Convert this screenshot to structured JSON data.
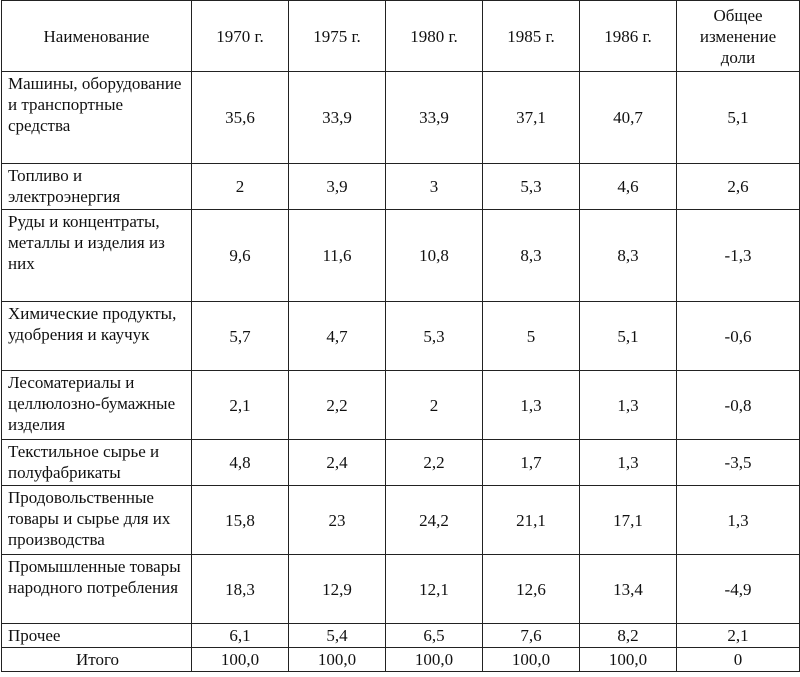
{
  "columns": [
    "Наименование",
    "1970 г.",
    "1975 г.",
    "1980 г.",
    "1985 г.",
    "1986 г.",
    "Общее изменение доли"
  ],
  "rows": [
    {
      "name": "Машины, оборудование и транспортные средства",
      "values": [
        "35,6",
        "33,9",
        "33,9",
        "37,1",
        "40,7",
        "5,1"
      ]
    },
    {
      "name": "Топливо и электроэнергия",
      "values": [
        "2",
        "3,9",
        "3",
        "5,3",
        "4,6",
        "2,6"
      ]
    },
    {
      "name": "Руды и концентраты, металлы и изделия из них",
      "values": [
        "9,6",
        "11,6",
        "10,8",
        "8,3",
        "8,3",
        "-1,3"
      ]
    },
    {
      "name": "Химические продукты, удобрения и каучук",
      "values": [
        "5,7",
        "4,7",
        "5,3",
        "5",
        "5,1",
        "-0,6"
      ]
    },
    {
      "name": "Лесоматериалы и целлюлозно-бумажные изделия",
      "values": [
        "2,1",
        "2,2",
        "2",
        "1,3",
        "1,3",
        "-0,8"
      ]
    },
    {
      "name": "Текстильное сырье и полуфабрикаты",
      "values": [
        "4,8",
        "2,4",
        "2,2",
        "1,7",
        "1,3",
        "-3,5"
      ]
    },
    {
      "name": "Продовольственные товары и сырье для их производства",
      "values": [
        "15,8",
        "23",
        "24,2",
        "21,1",
        "17,1",
        "1,3"
      ]
    },
    {
      "name": "Промышленные товары народного потребления",
      "values": [
        "18,3",
        "12,9",
        "12,1",
        "12,6",
        "13,4",
        "-4,9"
      ]
    },
    {
      "name": "Прочее",
      "values": [
        "6,1",
        "5,4",
        "6,5",
        "7,6",
        "8,2",
        "2,1"
      ]
    },
    {
      "name": "Итого",
      "values": [
        "100,0",
        "100,0",
        "100,0",
        "100,0",
        "100,0",
        "0"
      ]
    }
  ]
}
